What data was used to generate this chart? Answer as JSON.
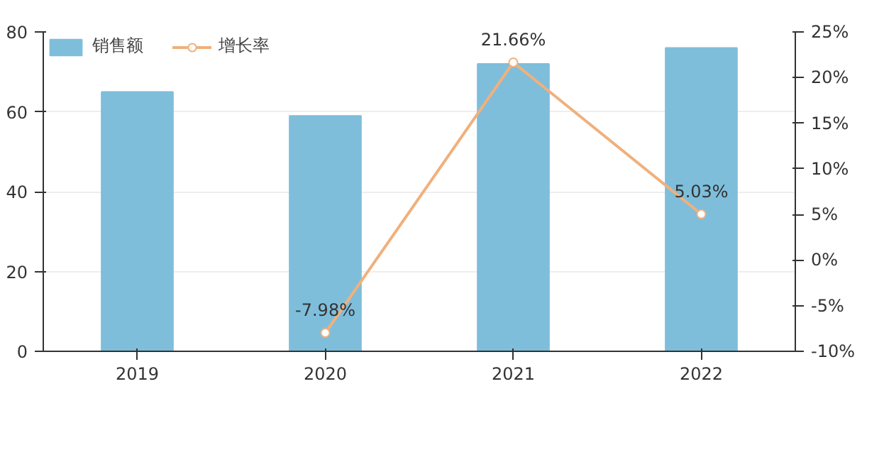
{
  "chart_data": {
    "type": "bar",
    "categories": [
      "2019",
      "2020",
      "2021",
      "2022"
    ],
    "series": [
      {
        "name": "销售额",
        "color": "#7ebedb",
        "values": [
          65,
          59,
          72,
          76
        ]
      },
      {
        "name": "增长率",
        "type": "line",
        "axis": "y2",
        "color": "#f0b07c",
        "marker": "circle",
        "values": [
          null,
          -7.98,
          21.66,
          5.03
        ],
        "value_labels": [
          null,
          "-7.98%",
          "21.66%",
          "5.03%"
        ]
      }
    ],
    "ylim": [
      0,
      80
    ],
    "yticks": [
      0,
      20,
      40,
      60,
      80
    ],
    "y2lim": [
      -10,
      25
    ],
    "y2ticks": [
      {
        "value": -10,
        "label": "-10%"
      },
      {
        "value": -5,
        "label": "-5%"
      },
      {
        "value": 0,
        "label": "0%"
      },
      {
        "value": 5,
        "label": "5%"
      },
      {
        "value": 10,
        "label": "10%"
      },
      {
        "value": 15,
        "label": "15%"
      },
      {
        "value": 20,
        "label": "20%"
      },
      {
        "value": 25,
        "label": "25%"
      }
    ],
    "grid": "y",
    "legend": "top left"
  }
}
